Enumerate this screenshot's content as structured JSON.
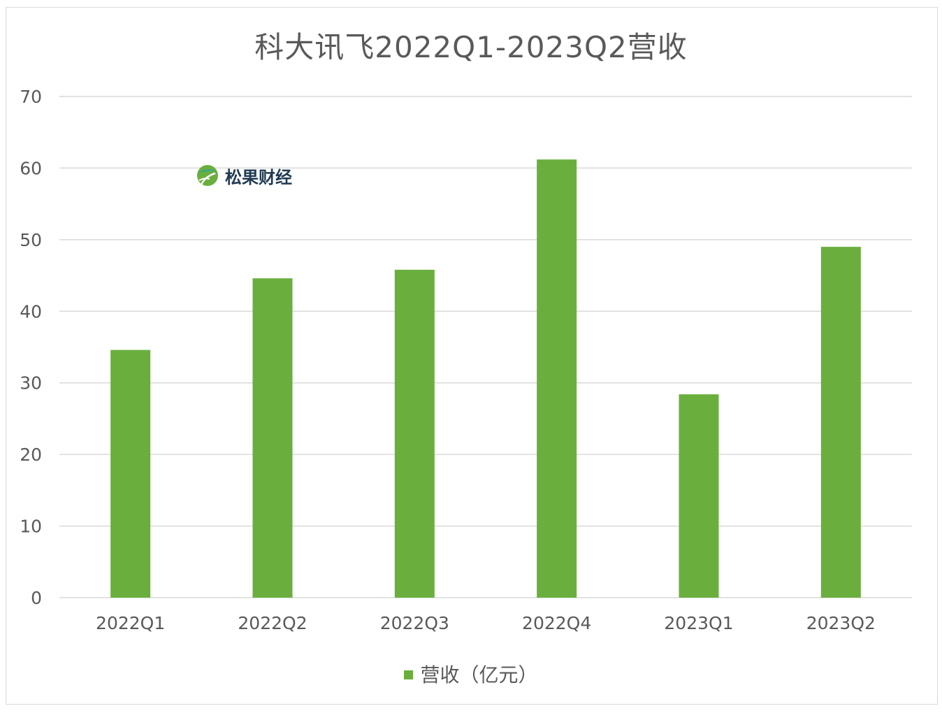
{
  "chart_data": {
    "type": "bar",
    "title": "科大讯飞2022Q1-2023Q2营收",
    "categories": [
      "2022Q1",
      "2022Q2",
      "2022Q3",
      "2022Q4",
      "2023Q1",
      "2023Q2"
    ],
    "series": [
      {
        "name": "营收（亿元）",
        "values": [
          34.6,
          44.6,
          45.8,
          61.2,
          28.4,
          49.0
        ]
      }
    ],
    "ylim": [
      0,
      70
    ],
    "yticks": [
      0,
      10,
      20,
      30,
      40,
      50,
      60,
      70
    ],
    "grid": true,
    "legend": "bottom",
    "bar_color": "#6aaf3e",
    "grid_color": "#d9d9d9",
    "text_color": "#595959"
  },
  "watermark": {
    "text": "松果财经",
    "logo_icon": "leaf-logo-icon"
  }
}
